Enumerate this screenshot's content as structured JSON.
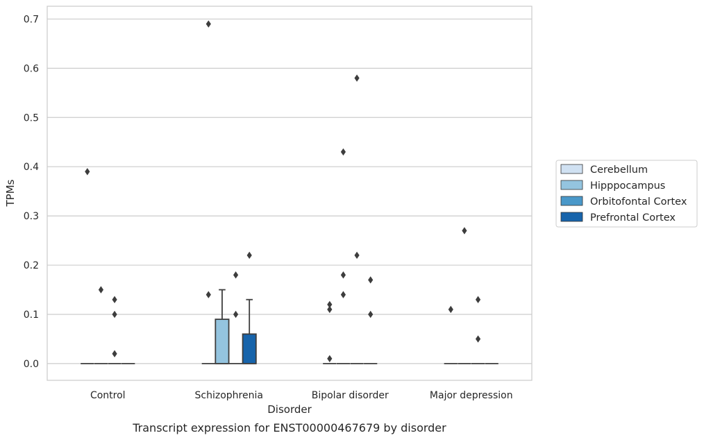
{
  "chart_data": {
    "type": "box",
    "title": "",
    "caption": "Transcript expression for ENST00000467679 by disorder",
    "xlabel": "Disorder",
    "ylabel": "TPMs",
    "ylim": [
      -0.034,
      0.726
    ],
    "yticks": [
      "0.0",
      "0.1",
      "0.2",
      "0.3",
      "0.4",
      "0.5",
      "0.6",
      "0.7"
    ],
    "ytick_values": [
      0,
      0.1,
      0.2,
      0.3,
      0.4,
      0.5,
      0.6,
      0.7
    ],
    "grid": "horizontal",
    "legend_position": "right",
    "categories": [
      "Control",
      "Schizophrenia",
      "Bipolar disorder",
      "Major depression"
    ],
    "series": [
      {
        "name": "Cerebellum",
        "color": "#d0e1f2",
        "boxes": [
          {
            "q1": 0,
            "median": 0,
            "q3": 0,
            "whisker_low": 0,
            "whisker_high": 0,
            "outliers": [
              0.39
            ]
          },
          {
            "q1": 0,
            "median": 0,
            "q3": 0,
            "whisker_low": 0,
            "whisker_high": 0,
            "outliers": [
              0.14,
              0.69
            ]
          },
          {
            "q1": 0,
            "median": 0,
            "q3": 0,
            "whisker_low": 0,
            "whisker_high": 0,
            "outliers": [
              0.01,
              0.11,
              0.12
            ]
          },
          {
            "q1": 0,
            "median": 0,
            "q3": 0,
            "whisker_low": 0,
            "whisker_high": 0,
            "outliers": [
              0.11
            ]
          }
        ]
      },
      {
        "name": "Hipppocampus",
        "color": "#94c4df",
        "boxes": [
          {
            "q1": 0,
            "median": 0,
            "q3": 0,
            "whisker_low": 0,
            "whisker_high": 0,
            "outliers": [
              0.15
            ]
          },
          {
            "q1": 0,
            "median": 0,
            "q3": 0.09,
            "whisker_low": 0,
            "whisker_high": 0.15,
            "outliers": []
          },
          {
            "q1": 0,
            "median": 0,
            "q3": 0,
            "whisker_low": 0,
            "whisker_high": 0,
            "outliers": [
              0.14,
              0.18,
              0.43
            ]
          },
          {
            "q1": 0,
            "median": 0,
            "q3": 0,
            "whisker_low": 0,
            "whisker_high": 0,
            "outliers": [
              0.27
            ]
          }
        ]
      },
      {
        "name": "Orbitofontal Cortex",
        "color": "#4a98c9",
        "boxes": [
          {
            "q1": 0,
            "median": 0,
            "q3": 0,
            "whisker_low": 0,
            "whisker_high": 0,
            "outliers": [
              0.02,
              0.1,
              0.13
            ]
          },
          {
            "q1": 0,
            "median": 0,
            "q3": 0,
            "whisker_low": 0,
            "whisker_high": 0,
            "outliers": [
              0.1,
              0.18
            ]
          },
          {
            "q1": 0,
            "median": 0,
            "q3": 0,
            "whisker_low": 0,
            "whisker_high": 0,
            "outliers": [
              0.22,
              0.58
            ]
          },
          {
            "q1": 0,
            "median": 0,
            "q3": 0,
            "whisker_low": 0,
            "whisker_high": 0,
            "outliers": [
              0.05,
              0.13
            ]
          }
        ]
      },
      {
        "name": "Prefrontal Cortex",
        "color": "#1764ab",
        "boxes": [
          {
            "q1": 0,
            "median": 0,
            "q3": 0,
            "whisker_low": 0,
            "whisker_high": 0,
            "outliers": []
          },
          {
            "q1": 0,
            "median": 0,
            "q3": 0.06,
            "whisker_low": 0,
            "whisker_high": 0.13,
            "outliers": [
              0.22
            ]
          },
          {
            "q1": 0,
            "median": 0,
            "q3": 0,
            "whisker_low": 0,
            "whisker_high": 0,
            "outliers": [
              0.1,
              0.17
            ]
          },
          {
            "q1": 0,
            "median": 0,
            "q3": 0,
            "whisker_low": 0,
            "whisker_high": 0,
            "outliers": []
          }
        ]
      }
    ]
  }
}
